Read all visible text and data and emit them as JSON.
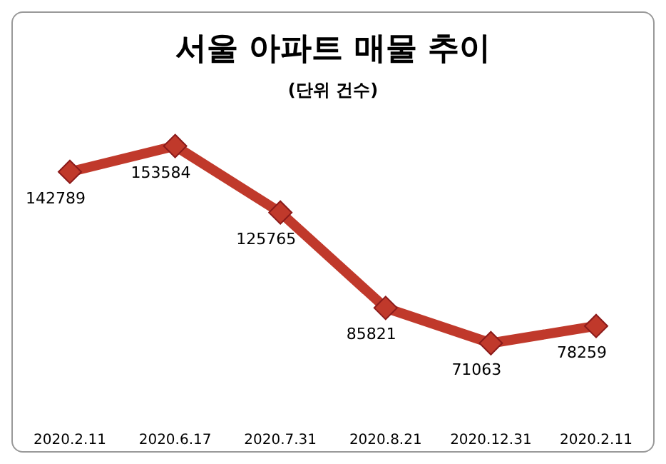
{
  "chart_data": {
    "type": "line",
    "title": "서울 아파트 매물 추이",
    "subtitle": "(단위 건수)",
    "categories": [
      "2020.2.11",
      "2020.6.17",
      "2020.7.31",
      "2020.8.21",
      "2020.12.31",
      "2020.2.11"
    ],
    "series": [
      {
        "color": "#c0392b",
        "values": [
          142789,
          153584,
          125765,
          85821,
          71063,
          78259
        ]
      }
    ],
    "data_labels": true,
    "marker": "diamond",
    "line_style": "solid",
    "grid": false,
    "legend": false,
    "tick_labels": "x"
  }
}
